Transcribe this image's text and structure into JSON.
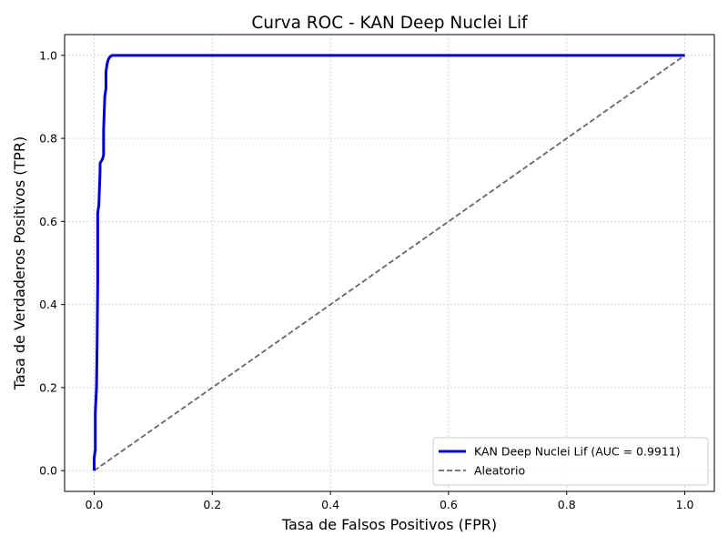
{
  "chart_data": {
    "type": "line",
    "title": "Curva ROC - KAN Deep Nuclei Lif",
    "xlabel": "Tasa de Falsos Positivos (FPR)",
    "ylabel": "Tasa de Verdaderos Positivos (TPR)",
    "xlim": [
      -0.05,
      1.05
    ],
    "ylim": [
      -0.05,
      1.05
    ],
    "xticks": [
      "0.0",
      "0.2",
      "0.4",
      "0.6",
      "0.8",
      "1.0"
    ],
    "yticks": [
      "0.0",
      "0.2",
      "0.4",
      "0.6",
      "0.8",
      "1.0"
    ],
    "grid": true,
    "legend_position": "lower-right",
    "series": [
      {
        "name": "KAN Deep Nuclei Lif (AUC = 0.9911)",
        "color": "#0000cc",
        "style": "solid",
        "x": [
          0.0,
          0.0,
          0.002,
          0.002,
          0.004,
          0.005,
          0.006,
          0.006,
          0.007,
          0.008,
          0.01,
          0.01,
          0.012,
          0.014,
          0.016,
          0.016,
          0.018,
          0.02,
          0.02,
          0.022,
          0.024,
          0.026,
          0.03,
          0.035,
          0.04,
          0.2,
          0.4,
          0.6,
          0.8,
          1.0
        ],
        "y": [
          0.0,
          0.03,
          0.05,
          0.14,
          0.2,
          0.3,
          0.45,
          0.62,
          0.63,
          0.64,
          0.72,
          0.74,
          0.745,
          0.75,
          0.76,
          0.82,
          0.9,
          0.92,
          0.96,
          0.98,
          0.99,
          0.995,
          1.0,
          1.0,
          1.0,
          1.0,
          1.0,
          1.0,
          1.0,
          1.0
        ]
      },
      {
        "name": "Aleatorio",
        "color": "#666666",
        "style": "dashed",
        "x": [
          0.0,
          1.0
        ],
        "y": [
          0.0,
          1.0
        ]
      }
    ]
  }
}
